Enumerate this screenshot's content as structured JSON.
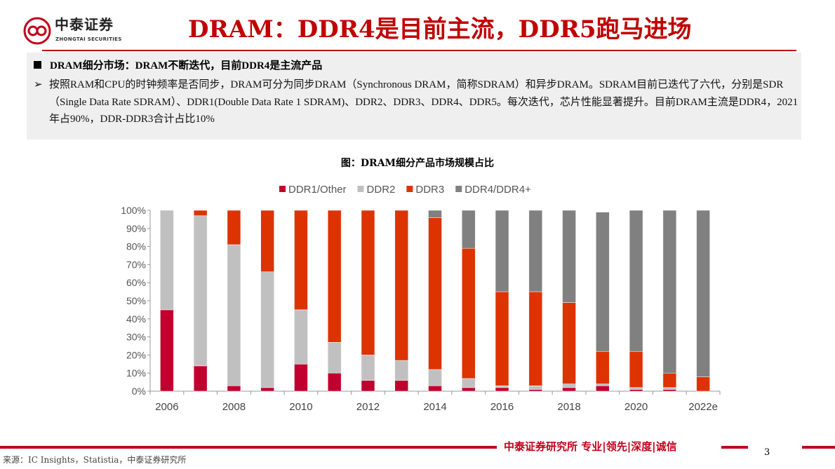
{
  "header": {
    "logo_cn": "中泰证券",
    "logo_en": "ZHONGTAI SECURITIES",
    "title": "DRAM：DDR4是目前主流，DDR5跑马进场"
  },
  "summary": {
    "heading": "DRAM细分市场：DRAM不断迭代，目前DDR4是主流产品",
    "body": "按照RAM和CPU的时钟频率是否同步，DRAM可分为同步DRAM（Synchronous DRAM，简称SDRAM）和异步DRAM。SDRAM目前已迭代了六代，分别是SDR（Single Data Rate SDRAM）、DDR1(Double Data Rate 1 SDRAM)、DDR2、DDR3、DDR4、DDR5。每次迭代，芯片性能显著提升。目前DRAM主流是DDR4，2021年占90%，DDR-DDR3合计占比10%"
  },
  "chart_data": {
    "type": "bar",
    "stacked": true,
    "title": "图：DRAM细分产品市场规模占比",
    "legend_position": "top",
    "categories": [
      "2006",
      "2007",
      "2008",
      "2009",
      "2010",
      "2011",
      "2012",
      "2013",
      "2014",
      "2015",
      "2016",
      "2017",
      "2018",
      "2019",
      "2020",
      "2021",
      "2022e"
    ],
    "x_tick_labels": [
      "2006",
      "",
      "2008",
      "",
      "2010",
      "",
      "2012",
      "",
      "2014",
      "",
      "2016",
      "",
      "2018",
      "",
      "2020",
      "",
      "2022e"
    ],
    "y_tick_labels": [
      "0%",
      "10%",
      "20%",
      "30%",
      "40%",
      "50%",
      "60%",
      "70%",
      "80%",
      "90%",
      "100%"
    ],
    "ylim": [
      0,
      100
    ],
    "grid": false,
    "series": [
      {
        "name": "DDR1/Other",
        "color": "#c0002e",
        "values": [
          45,
          14,
          3,
          2,
          15,
          10,
          6,
          6,
          3,
          2,
          2,
          1,
          2,
          3,
          1,
          1,
          0
        ]
      },
      {
        "name": "DDR2",
        "color": "#c0c0c0",
        "values": [
          55,
          83,
          78,
          64,
          30,
          17,
          14,
          11,
          9,
          5,
          1,
          2,
          2,
          1,
          1,
          1,
          0
        ]
      },
      {
        "name": "DDR3",
        "color": "#dd3300",
        "values": [
          0,
          3,
          19,
          34,
          55,
          73,
          80,
          83,
          84,
          72,
          52,
          52,
          45,
          18,
          20,
          8,
          8
        ]
      },
      {
        "name": "DDR4/DDR4+",
        "color": "#808080",
        "values": [
          0,
          0,
          0,
          0,
          0,
          0,
          0,
          0,
          4,
          21,
          45,
          45,
          51,
          77,
          78,
          90,
          92
        ]
      }
    ]
  },
  "footer": {
    "slogan": "中泰证券研究所 专业|领先|深度|诚信",
    "page": "3",
    "source": "来源：IC Insights，Statistia，中泰证券研究所"
  }
}
